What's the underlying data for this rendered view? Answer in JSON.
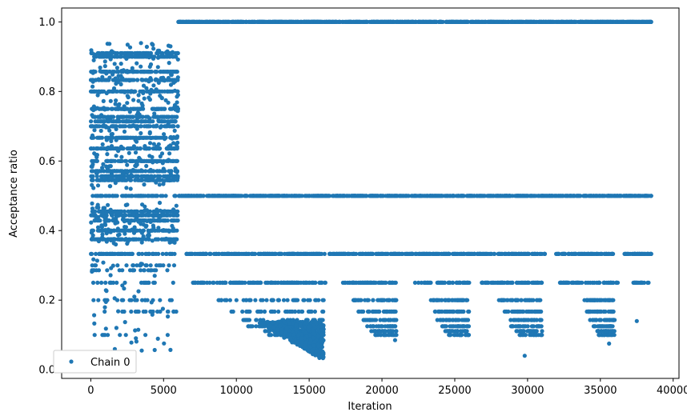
{
  "chart_data": {
    "type": "scatter",
    "xlabel": "Iteration",
    "ylabel": "Acceptance ratio",
    "xlim": [
      -2000,
      40400
    ],
    "ylim": [
      -0.025,
      1.04
    ],
    "xticks": [
      0,
      5000,
      10000,
      15000,
      20000,
      25000,
      30000,
      35000,
      40000
    ],
    "xtick_labels": [
      "0",
      "5000",
      "10000",
      "15000",
      "20000",
      "25000",
      "30000",
      "35000",
      "40000"
    ],
    "yticks": [
      0.0,
      0.2,
      0.4,
      0.6,
      0.8,
      1.0
    ],
    "ytick_labels": [
      "0.0",
      "0.2",
      "0.4",
      "0.6",
      "0.8",
      "1.0"
    ],
    "grid": false,
    "legend": {
      "placement": "lower-left",
      "entries": [
        "Chain 0"
      ]
    },
    "series": [
      {
        "name": "Chain 0",
        "color": "#1f77b4",
        "marker": "circle",
        "x_range": [
          0,
          38500
        ],
        "phases": [
          {
            "x_range": [
              0,
              6000
            ],
            "levels": [
              0.91,
              0.9,
              0.857,
              0.833,
              0.8,
              0.75,
              0.727,
              0.714,
              0.7,
              0.667,
              0.636,
              0.6,
              0.571,
              0.556,
              0.545,
              0.5,
              0.455,
              0.444,
              0.429,
              0.4,
              0.375,
              0.333,
              0.3,
              0.286,
              0.25,
              0.2,
              0.167,
              0.1
            ]
          },
          {
            "x_range": [
              6000,
              38500
            ],
            "levels": [
              1.0,
              0.5,
              0.333,
              0.25,
              0.2,
              0.167,
              0.143,
              0.125,
              0.111,
              0.1,
              0.083
            ]
          },
          {
            "x_range": [
              12000,
              16000
            ],
            "levels": [
              0.077,
              0.067,
              0.059,
              0.05,
              0.04,
              0.03
            ]
          }
        ]
      }
    ]
  }
}
